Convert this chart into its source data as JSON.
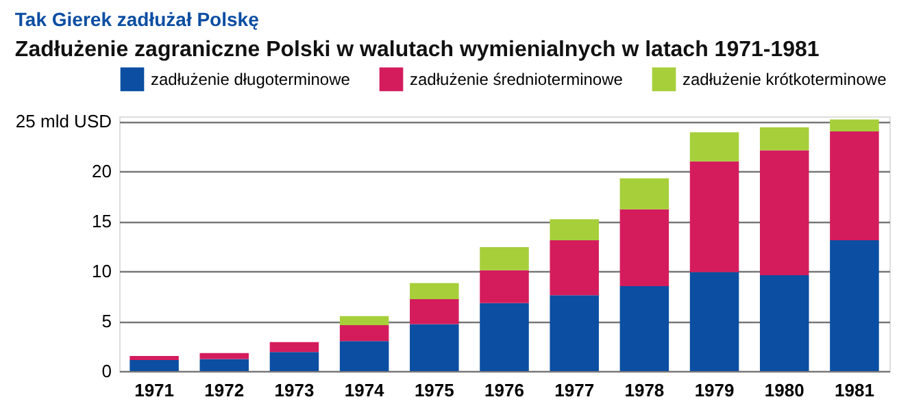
{
  "chart_data": {
    "type": "bar",
    "stacked": true,
    "title": "Tak Gierek zadłużał Polskę",
    "subtitle": "Zadłużenie zagraniczne Polski w walutach wymienialnych w latach 1971-1981",
    "categories": [
      "1971",
      "1972",
      "1973",
      "1974",
      "1975",
      "1976",
      "1977",
      "1978",
      "1979",
      "1980",
      "1981"
    ],
    "series": [
      {
        "name": "zadłużenie długoterminowe",
        "color": "#0b4ea2",
        "values": [
          1.1,
          1.2,
          1.9,
          3.0,
          4.7,
          6.8,
          7.6,
          8.5,
          9.9,
          9.6,
          13.1
        ]
      },
      {
        "name": "zadłużenie średnioterminowe",
        "color": "#d41c5c",
        "values": [
          0.4,
          0.6,
          1.0,
          1.6,
          2.5,
          3.3,
          5.5,
          7.7,
          11.1,
          12.5,
          10.9
        ]
      },
      {
        "name": "zadłużenie krótkoterminowe",
        "color": "#a6cf3a",
        "values": [
          0,
          0,
          0,
          0.9,
          1.6,
          2.3,
          2.1,
          3.1,
          2.9,
          2.3,
          1.2
        ]
      }
    ],
    "ylim": [
      0,
      25.5
    ],
    "yticks": [
      0,
      5,
      10,
      15,
      20,
      {
        "value": 25,
        "label": "25 mld USD"
      }
    ],
    "grid": "y",
    "legend": "top"
  }
}
